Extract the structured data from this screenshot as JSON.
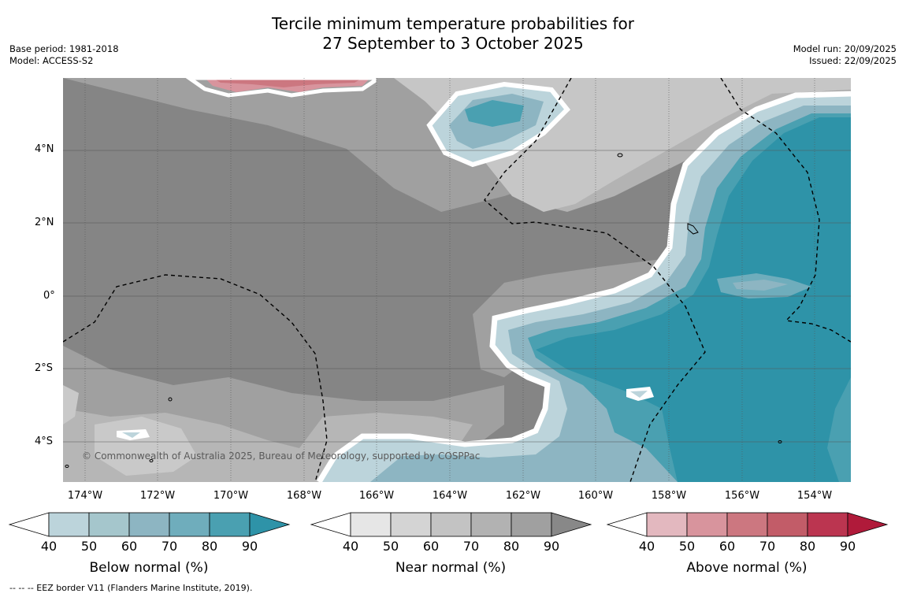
{
  "title": {
    "line1": "Tercile minimum temperature probabilities for",
    "line2": "27 September to 3 October 2025"
  },
  "meta": {
    "base_period": "Base period: 1981-2018",
    "model": "Model: ACCESS-S2",
    "model_run": "Model run: 20/09/2025",
    "issued": "Issued: 22/09/2025"
  },
  "map": {
    "copyright": "© Commonwealth of Australia 2025, Bureau of Meteorology, supported by COSPPac",
    "lat_ticks": [
      "4°N",
      "2°N",
      "0°",
      "2°S",
      "4°S"
    ],
    "lon_ticks": [
      "174°W",
      "172°W",
      "170°W",
      "168°W",
      "166°W",
      "164°W",
      "162°W",
      "160°W",
      "158°W",
      "156°W",
      "154°W"
    ]
  },
  "legends": [
    {
      "name": "below",
      "title": "Below normal (%)",
      "ticks": [
        "40",
        "50",
        "60",
        "70",
        "80",
        "90"
      ],
      "colors": [
        "#bcd4db",
        "#a5c6cc",
        "#8db5c2",
        "#6fadbc",
        "#4aa0b1",
        "#2e93a8"
      ]
    },
    {
      "name": "near",
      "title": "Near normal (%)",
      "ticks": [
        "40",
        "50",
        "60",
        "70",
        "80",
        "90"
      ],
      "colors": [
        "#e6e6e6",
        "#d4d4d4",
        "#c3c3c3",
        "#b2b2b2",
        "#a0a0a0",
        "#888888"
      ]
    },
    {
      "name": "above",
      "title": "Above normal (%)",
      "ticks": [
        "40",
        "50",
        "60",
        "70",
        "80",
        "90"
      ],
      "colors": [
        "#e3b8bf",
        "#d8949d",
        "#cc7780",
        "#c25c68",
        "#bb3550",
        "#b01a3a"
      ]
    }
  ],
  "footer": "--  --  -- EEZ border V11 (Flanders Marine Institute, 2019)."
}
